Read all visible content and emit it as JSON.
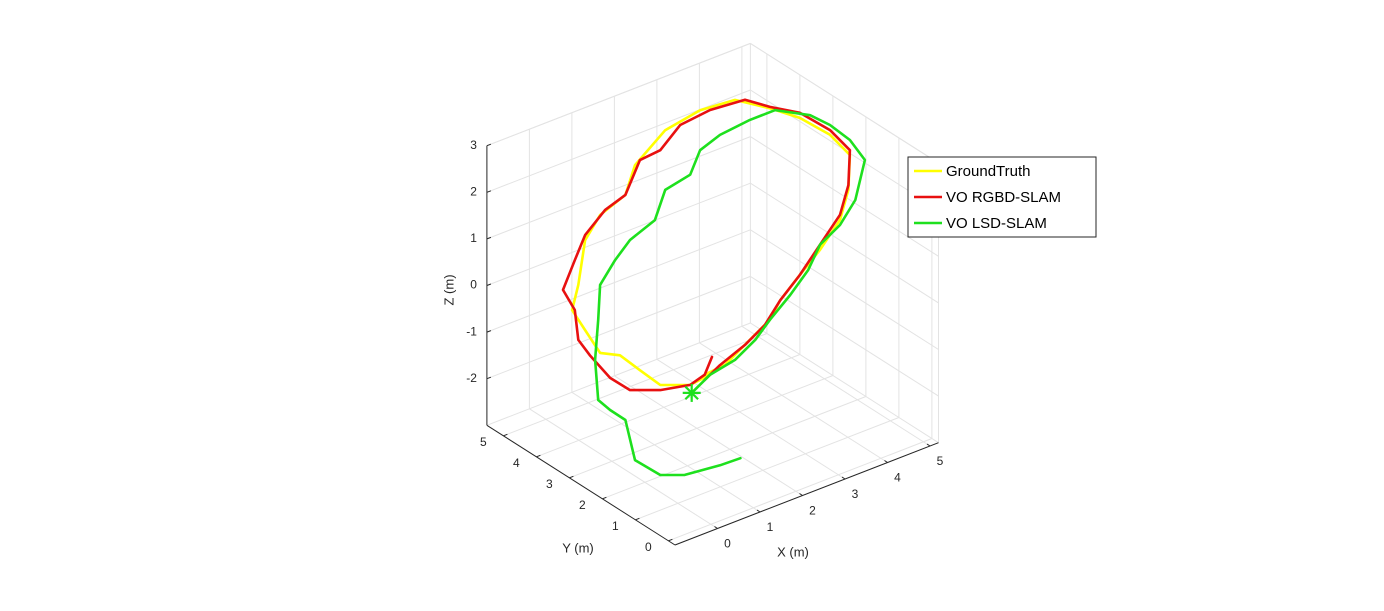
{
  "chart_data": {
    "type": "line3d",
    "x_label": "X (m)",
    "y_label": "Y (m)",
    "z_label": "Z (m)",
    "xlim": [
      -1,
      5.2
    ],
    "ylim": [
      -0.2,
      5.5
    ],
    "zlim": [
      -3,
      3
    ],
    "xticks": [
      0,
      1,
      2,
      3,
      4,
      5
    ],
    "yticks": [
      0,
      1,
      2,
      3,
      4,
      5
    ],
    "zticks": [
      -2,
      -1,
      0,
      1,
      2,
      3
    ],
    "grid": true,
    "legend": "right",
    "series": [
      {
        "name": "GroundTruth",
        "color": "#ffff00",
        "x": [
          2.14,
          1.85,
          1.41,
          1.11,
          0.82,
          0.53,
          0.31,
          0.12,
          0.21,
          0.31,
          0.53,
          0.9,
          1.04,
          1.48,
          1.99,
          2.5,
          3.01,
          3.45,
          3.89,
          4.18,
          4.16,
          4.04,
          3.75,
          3.45,
          3.16,
          3.01,
          2.72,
          2.36,
          2.06
        ],
        "y": [
          2.78,
          3.01,
          3.35,
          3.58,
          3.81,
          4.04,
          4.21,
          4.36,
          4.29,
          4.21,
          4.04,
          3.75,
          3.64,
          3.29,
          2.89,
          2.49,
          2.09,
          1.75,
          1.4,
          1.17,
          1.19,
          1.29,
          1.52,
          1.75,
          1.97,
          2.09,
          2.32,
          2.61,
          2.84
        ],
        "z": [
          -1.8,
          -2.02,
          -2.02,
          -1.7,
          -1.38,
          -1.33,
          -0.84,
          -0.41,
          0.13,
          1.09,
          1.63,
          2.06,
          2.7,
          3.45,
          3.88,
          4.1,
          3.92,
          3.71,
          3.35,
          2.92,
          2.17,
          1.52,
          0.88,
          0.34,
          -0.2,
          -0.62,
          -1.05,
          -1.59,
          -1.8
        ]
      },
      {
        "name": "VO RGBD-SLAM",
        "color": "#e81010",
        "x": [
          2.17,
          2.06,
          1.85,
          1.41,
          0.97,
          0.68,
          0.38,
          0.21,
          0.16,
          -0.01,
          0.16,
          0.31,
          0.6,
          0.9,
          1.11,
          1.41,
          1.7,
          2.14,
          2.65,
          3.01,
          3.45,
          3.89,
          4.18,
          4.16,
          4.04,
          3.75,
          3.45,
          3.16,
          2.94,
          2.65,
          2.28,
          2.06
        ],
        "y": [
          2.76,
          2.84,
          3.01,
          3.35,
          3.7,
          3.93,
          4.16,
          4.29,
          4.33,
          4.47,
          4.33,
          4.21,
          3.98,
          3.75,
          3.58,
          3.35,
          3.12,
          2.78,
          2.38,
          2.09,
          1.75,
          1.4,
          1.17,
          1.19,
          1.29,
          1.52,
          1.75,
          1.97,
          2.15,
          2.38,
          2.66,
          2.84
        ],
        "z": [
          -1.42,
          -1.8,
          -2.02,
          -2.13,
          -2.13,
          -1.87,
          -1.38,
          -1.05,
          -0.41,
          0.02,
          0.66,
          1.2,
          1.74,
          2.06,
          2.81,
          3.02,
          3.56,
          3.88,
          4.1,
          3.95,
          3.82,
          3.45,
          3.02,
          2.27,
          1.63,
          0.99,
          0.34,
          -0.2,
          -0.73,
          -1.16,
          -1.59,
          -1.91
        ]
      },
      {
        "name": "VO LSD-SLAM",
        "color": "#1ee01e",
        "start_marker": "*",
        "x": [
          1.87,
          2.14,
          2.5,
          2.8,
          3.01,
          3.31,
          3.57,
          3.75,
          4.04,
          4.26,
          4.4,
          4.18,
          3.89,
          3.6,
          3.09,
          2.72,
          2.28,
          1.99,
          1.85,
          1.48,
          1.33,
          0.97,
          0.75,
          0.53,
          0.5,
          0.46,
          0.5,
          0.68,
          0.9,
          1.04,
          1.41,
          1.77,
          2.28,
          2.58
        ],
        "y": [
          2.99,
          2.78,
          2.49,
          2.26,
          2.09,
          1.86,
          1.65,
          1.52,
          1.29,
          1.11,
          1.0,
          1.17,
          1.4,
          1.63,
          2.03,
          2.32,
          2.66,
          2.89,
          3.01,
          3.29,
          3.41,
          3.7,
          3.87,
          4.04,
          4.06,
          4.1,
          4.06,
          3.93,
          3.75,
          3.64,
          3.35,
          3.07,
          2.66,
          2.43
        ],
        "z": [
          -2.19,
          -1.8,
          -1.48,
          -1.05,
          -0.62,
          -0.09,
          0.45,
          0.99,
          1.41,
          1.95,
          2.81,
          3.24,
          3.56,
          3.77,
          3.88,
          3.67,
          3.35,
          3.02,
          2.49,
          2.17,
          1.52,
          1.09,
          0.66,
          0.13,
          -0.62,
          -1.48,
          -2.34,
          -2.56,
          -2.77,
          -3.63,
          -3.95,
          -3.95,
          -3.74,
          -3.59
        ]
      }
    ]
  }
}
